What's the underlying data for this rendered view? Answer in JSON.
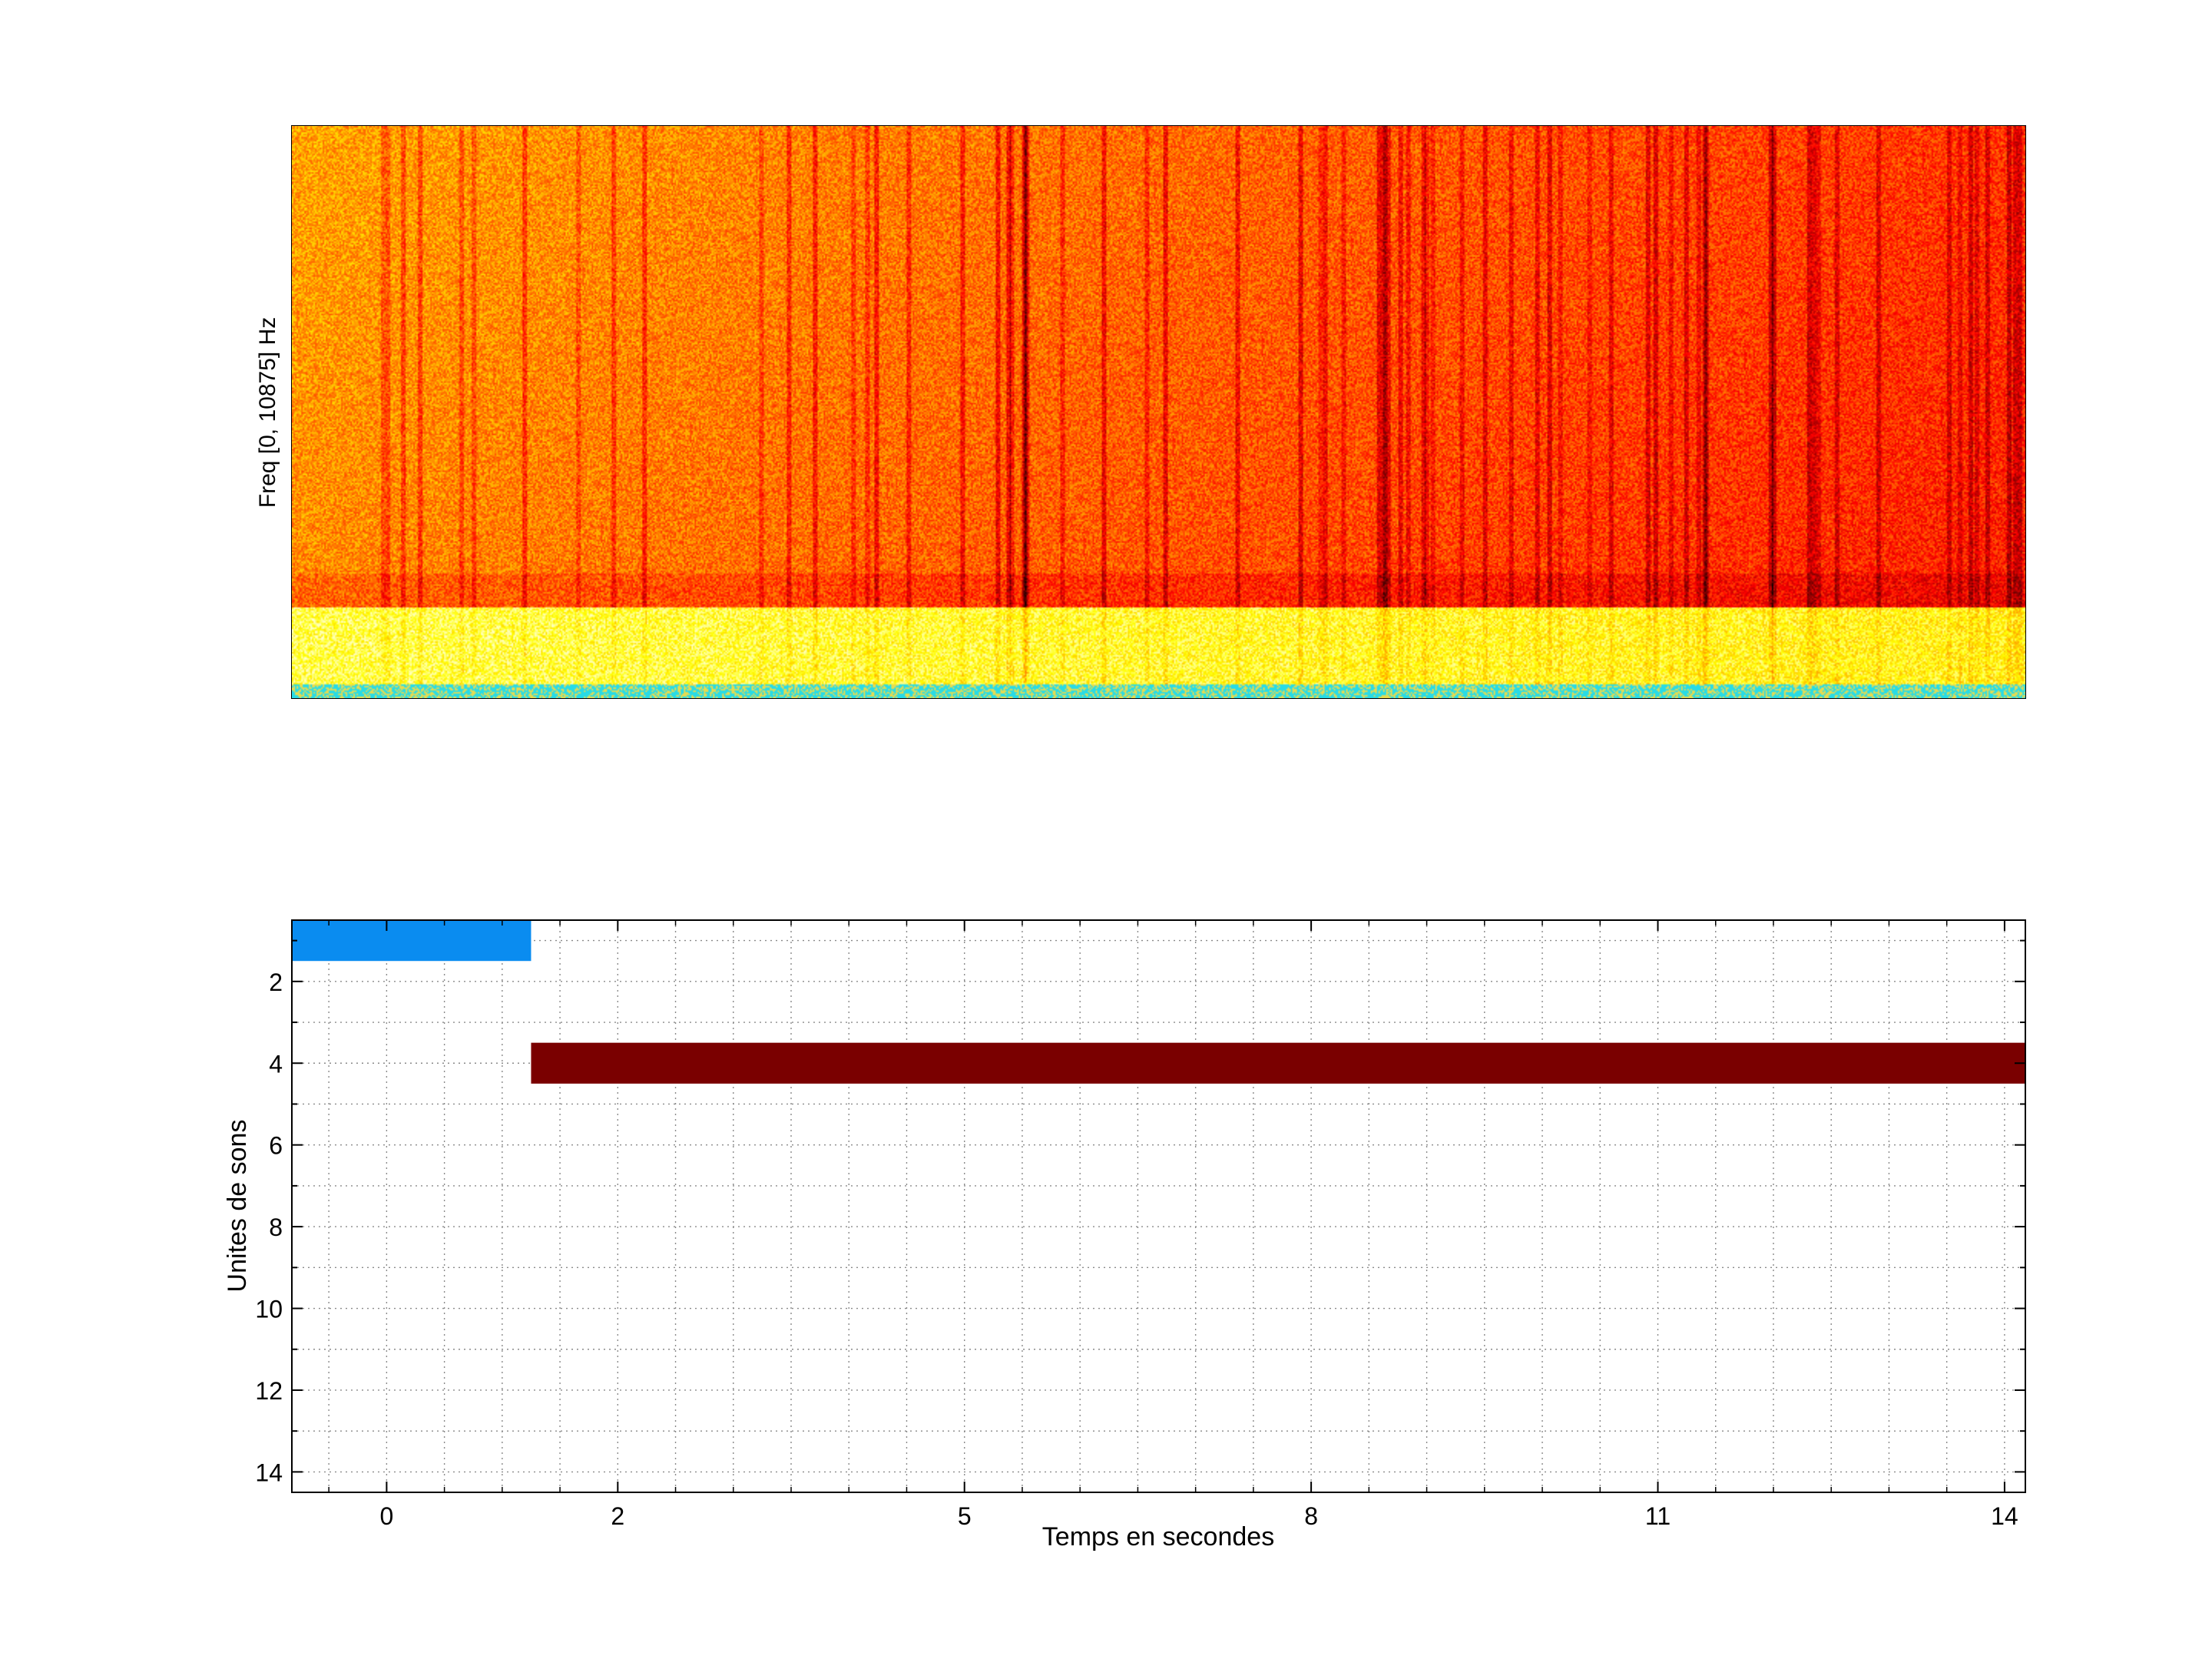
{
  "chart_data": [
    {
      "type": "heatmap",
      "title": "",
      "xlabel": "",
      "ylabel": "Freq [0, 10875] Hz",
      "xticklabels": [],
      "yticklabels": [],
      "colormap": "hot",
      "description_free": true
    },
    {
      "type": "bar",
      "orientation": "horizontal",
      "xlabel": "Temps en secondes",
      "ylabel": "Unites de sons",
      "xlim": [
        -0.82,
        14.18
      ],
      "ylim": [
        14.5,
        0.5
      ],
      "y_reversed": true,
      "grid": true,
      "x_major_ticks": [
        0,
        2,
        5,
        8,
        11,
        14
      ],
      "x_tick_labels": [
        "0",
        "2",
        "5",
        "8",
        "11",
        "14"
      ],
      "x_minor_step": 0.5,
      "y_major_ticks": [
        2,
        4,
        6,
        8,
        10,
        12,
        14
      ],
      "y_tick_labels": [
        "2",
        "4",
        "6",
        "8",
        "10",
        "12",
        "14"
      ],
      "segments": [
        {
          "unit": 1,
          "start": -0.82,
          "end": 1.25,
          "color": "#0a8cf0"
        },
        {
          "unit": 4,
          "start": 1.25,
          "end": 14.18,
          "color": "#7a0000"
        }
      ]
    }
  ]
}
